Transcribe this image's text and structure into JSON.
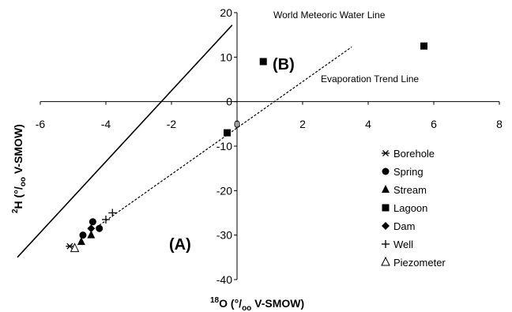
{
  "chart_data": {
    "type": "scatter",
    "x_axis": {
      "label_sup": "18",
      "label_main": "O (°/",
      "label_sub": "oo",
      "label_tail": " V-SMOW)",
      "range": [
        -6,
        8
      ],
      "ticks": [
        "-6",
        "-4",
        "-2",
        "0",
        "2",
        "4",
        "6",
        "8"
      ],
      "tick_values": [
        -6,
        -4,
        -2,
        0,
        2,
        4,
        6,
        8
      ]
    },
    "y_axis": {
      "label_sup": "2",
      "label_main": "H (°/",
      "label_sub": "oo",
      "label_tail": " V-SMOW)",
      "range": [
        -40,
        20
      ],
      "ticks": [
        "20",
        "10",
        "0",
        "-10",
        "-20",
        "-30",
        "-40"
      ],
      "tick_values": [
        20,
        10,
        0,
        -10,
        -20,
        -30,
        -40
      ]
    },
    "lines": [
      {
        "name": "World Meteoric Water Line",
        "style": "solid",
        "x": [
          -6.7,
          -0.15
        ],
        "y": [
          -35,
          17.2
        ]
      },
      {
        "name": "Evaporation Trend Line",
        "style": "dashed",
        "x": [
          -4.3,
          3.5
        ],
        "y": [
          -28.3,
          12.3
        ]
      }
    ],
    "annotations": {
      "region_b": "(B)",
      "region_a": "(A)"
    },
    "series": [
      {
        "name": "Borehole",
        "marker": "asterisk",
        "points": [
          [
            -5.1,
            -32.5
          ]
        ]
      },
      {
        "name": "Spring",
        "marker": "circle",
        "points": [
          [
            -4.7,
            -30
          ],
          [
            -4.4,
            -27
          ],
          [
            -4.2,
            -28.5
          ]
        ]
      },
      {
        "name": "Stream",
        "marker": "triangle",
        "points": [
          [
            -4.75,
            -31.5
          ],
          [
            -4.45,
            -30
          ]
        ]
      },
      {
        "name": "Lagoon",
        "marker": "square",
        "points": [
          [
            0.8,
            9
          ],
          [
            5.7,
            12.5
          ],
          [
            -0.3,
            -7
          ]
        ]
      },
      {
        "name": "Dam",
        "marker": "diamond",
        "points": [
          [
            -4.45,
            -28.5
          ]
        ]
      },
      {
        "name": "Well",
        "marker": "plus",
        "points": [
          [
            -4.0,
            -26.5
          ],
          [
            -3.8,
            -25
          ]
        ]
      },
      {
        "name": "Piezometer",
        "marker": "triangle-open",
        "points": [
          [
            -4.95,
            -33
          ]
        ]
      }
    ],
    "legend": {
      "placement": "bottom-right",
      "labels": [
        "Borehole",
        "Spring",
        "Stream",
        "Lagoon",
        "Dam",
        "Well",
        "Piezometer"
      ]
    }
  }
}
